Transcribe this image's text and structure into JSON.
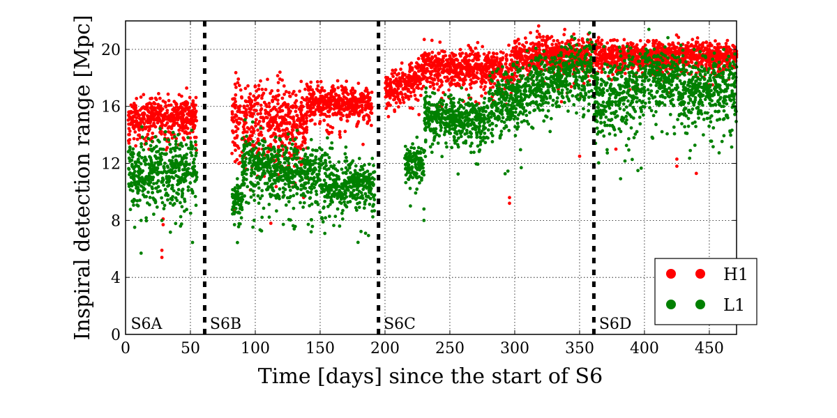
{
  "chart_data": {
    "type": "scatter",
    "title": "",
    "xlabel": "Time [days] since the start of S6",
    "ylabel": "Inspiral detection range [Mpc]",
    "xlim": [
      0,
      471
    ],
    "ylim": [
      0,
      22
    ],
    "xticks": [
      0,
      50,
      100,
      150,
      200,
      250,
      300,
      350,
      400,
      450
    ],
    "xtick_labels": [
      "0",
      "50",
      "100",
      "150",
      "200",
      "250",
      "300",
      "350",
      "400",
      "450"
    ],
    "yticks": [
      0,
      4,
      8,
      12,
      16,
      20
    ],
    "ytick_labels": [
      "0",
      "4",
      "8",
      "12",
      "16",
      "20"
    ],
    "grid": true,
    "legend_position": "bottom-right",
    "run_boundaries": [
      61,
      195,
      361
    ],
    "run_labels": [
      {
        "text": "S6A",
        "x": 4
      },
      {
        "text": "S6B",
        "x": 65
      },
      {
        "text": "S6C",
        "x": 199
      },
      {
        "text": "S6D",
        "x": 365
      }
    ],
    "series": [
      {
        "name": "H1",
        "color": "#ff0000",
        "segments": [
          {
            "x": [
              2,
              55
            ],
            "center": [
              15.0,
              15.6
            ],
            "spread": 0.8
          },
          {
            "x": [
              82,
              140
            ],
            "center": [
              15.5,
              14.5
            ],
            "spread": 1.6
          },
          {
            "x": [
              140,
              190
            ],
            "center": [
              16.3,
              16.2
            ],
            "spread": 0.7
          },
          {
            "x": [
              200,
              228
            ],
            "center": [
              17.2,
              18.0
            ],
            "spread": 0.7
          },
          {
            "x": [
              228,
              300
            ],
            "center": [
              18.8,
              18.6
            ],
            "spread": 0.8
          },
          {
            "x": [
              300,
              360
            ],
            "center": [
              19.5,
              19.6
            ],
            "spread": 0.8
          },
          {
            "x": [
              361,
              471
            ],
            "center": [
              19.5,
              19.6
            ],
            "spread": 0.6
          }
        ],
        "outliers": [
          [
            28,
            5.9
          ],
          [
            28,
            5.4
          ],
          [
            29,
            7.7
          ],
          [
            29,
            8.1
          ],
          [
            112,
            7.8
          ],
          [
            296,
            9.6
          ],
          [
            296,
            9.2
          ],
          [
            350,
            12.5
          ],
          [
            425,
            12.3
          ],
          [
            425,
            11.8
          ],
          [
            440,
            11.3
          ],
          [
            378,
            13.0
          ]
        ]
      },
      {
        "name": "L1",
        "color": "#008000",
        "segments": [
          {
            "x": [
              2,
              55
            ],
            "center": [
              11.5,
              11.5
            ],
            "spread": 1.4
          },
          {
            "x": [
              82,
              90
            ],
            "center": [
              9.5,
              9.5
            ],
            "spread": 0.8
          },
          {
            "x": [
              90,
              160
            ],
            "center": [
              12.0,
              11.0
            ],
            "spread": 1.3
          },
          {
            "x": [
              160,
              192
            ],
            "center": [
              10.5,
              10.5
            ],
            "spread": 1.0
          },
          {
            "x": [
              215,
              230
            ],
            "center": [
              12.0,
              12.0
            ],
            "spread": 0.8
          },
          {
            "x": [
              230,
              280
            ],
            "center": [
              15.3,
              15.0
            ],
            "spread": 0.9
          },
          {
            "x": [
              280,
              330
            ],
            "center": [
              15.8,
              18.0
            ],
            "spread": 1.3
          },
          {
            "x": [
              330,
              360
            ],
            "center": [
              18.0,
              18.8
            ],
            "spread": 1.2
          },
          {
            "x": [
              361,
              400
            ],
            "center": [
              16.5,
              17.5
            ],
            "spread": 1.6
          },
          {
            "x": [
              400,
              430
            ],
            "center": [
              18.5,
              17.5
            ],
            "spread": 1.3
          },
          {
            "x": [
              430,
              471
            ],
            "center": [
              17.0,
              17.5
            ],
            "spread": 1.4
          }
        ],
        "outliers": [
          [
            12,
            5.7
          ],
          [
            12,
            8.0
          ],
          [
            28,
            8.0
          ],
          [
            84,
            7.7
          ],
          [
            130,
            7.4
          ],
          [
            165,
            7.6
          ],
          [
            185,
            7.1
          ],
          [
            230,
            8.8
          ],
          [
            230,
            8.0
          ],
          [
            305,
            11.7
          ],
          [
            395,
            11.5
          ]
        ]
      }
    ]
  }
}
